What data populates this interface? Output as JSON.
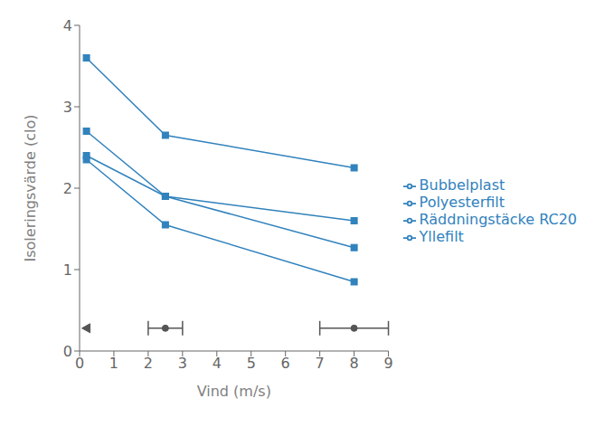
{
  "chart_data": {
    "type": "line",
    "xlabel": "Vind (m/s)",
    "ylabel": "Isoleringsvärde (clo)",
    "xlim": [
      0,
      9
    ],
    "ylim": [
      0,
      4
    ],
    "xticks": [
      0,
      1,
      2,
      3,
      4,
      5,
      6,
      7,
      8,
      9
    ],
    "yticks": [
      0,
      1,
      2,
      3,
      4
    ],
    "grid": false,
    "series": [
      {
        "name": "Räddningstäcke RC20",
        "type": "line",
        "marker": "square",
        "x": [
          0.2,
          2.5,
          8.0
        ],
        "values": [
          3.6,
          2.65,
          2.25
        ]
      },
      {
        "name": "Bubbelplast",
        "type": "line",
        "marker": "square",
        "x": [
          0.2,
          2.5,
          8.0
        ],
        "values": [
          2.7,
          1.9,
          1.6
        ]
      },
      {
        "name": "Yllefilt",
        "type": "line",
        "marker": "square",
        "x": [
          0.2,
          2.5,
          8.0
        ],
        "values": [
          2.4,
          1.9,
          1.27
        ]
      },
      {
        "name": "Polyesterfilt",
        "type": "line",
        "marker": "square",
        "x": [
          0.2,
          2.5,
          8.0
        ],
        "values": [
          2.35,
          1.55,
          0.85
        ]
      },
      {
        "type": "scatter",
        "marker": "triangle-left",
        "x": [
          0.2
        ],
        "values": [
          0.28
        ]
      },
      {
        "type": "scatter",
        "marker": "circle",
        "x": [
          2.5,
          8.0
        ],
        "values": [
          0.28,
          0.28
        ],
        "xerr_minus": [
          0.5,
          1.0
        ],
        "xerr_plus": [
          0.5,
          1.0
        ]
      }
    ]
  }
}
